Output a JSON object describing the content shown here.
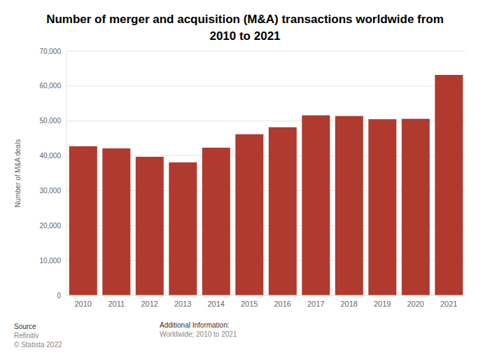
{
  "chart_data": {
    "type": "bar",
    "title": "Number of merger and acquisition (M&A) transactions worldwide from 2010 to 2021",
    "y_label": "Number of M&A deals",
    "categories": [
      "2010",
      "2011",
      "2012",
      "2013",
      "2014",
      "2015",
      "2016",
      "2017",
      "2018",
      "2019",
      "2020",
      "2021"
    ],
    "values": [
      42700,
      42100,
      39700,
      38100,
      42300,
      46200,
      48200,
      51600,
      51400,
      50500,
      50600,
      63200
    ],
    "color": "#b03a2e",
    "ylim": [
      0,
      70000
    ],
    "yticks": [
      0,
      {
        "value": 10000,
        "label": "10,000"
      },
      {
        "value": 20000,
        "label": "20,000"
      },
      {
        "value": 30000,
        "label": "30,000"
      },
      {
        "value": 40000,
        "label": "40,000"
      },
      {
        "value": 50000,
        "label": "50,000"
      },
      {
        "value": 60000,
        "label": "60,000"
      },
      {
        "value": 70000,
        "label": "70,000"
      }
    ],
    "grid": true,
    "annotations": [
      "Source",
      "Refinitiv",
      "© Statista 2022",
      "Additional Information:",
      "Worldwide; 2010 to 2021"
    ]
  }
}
